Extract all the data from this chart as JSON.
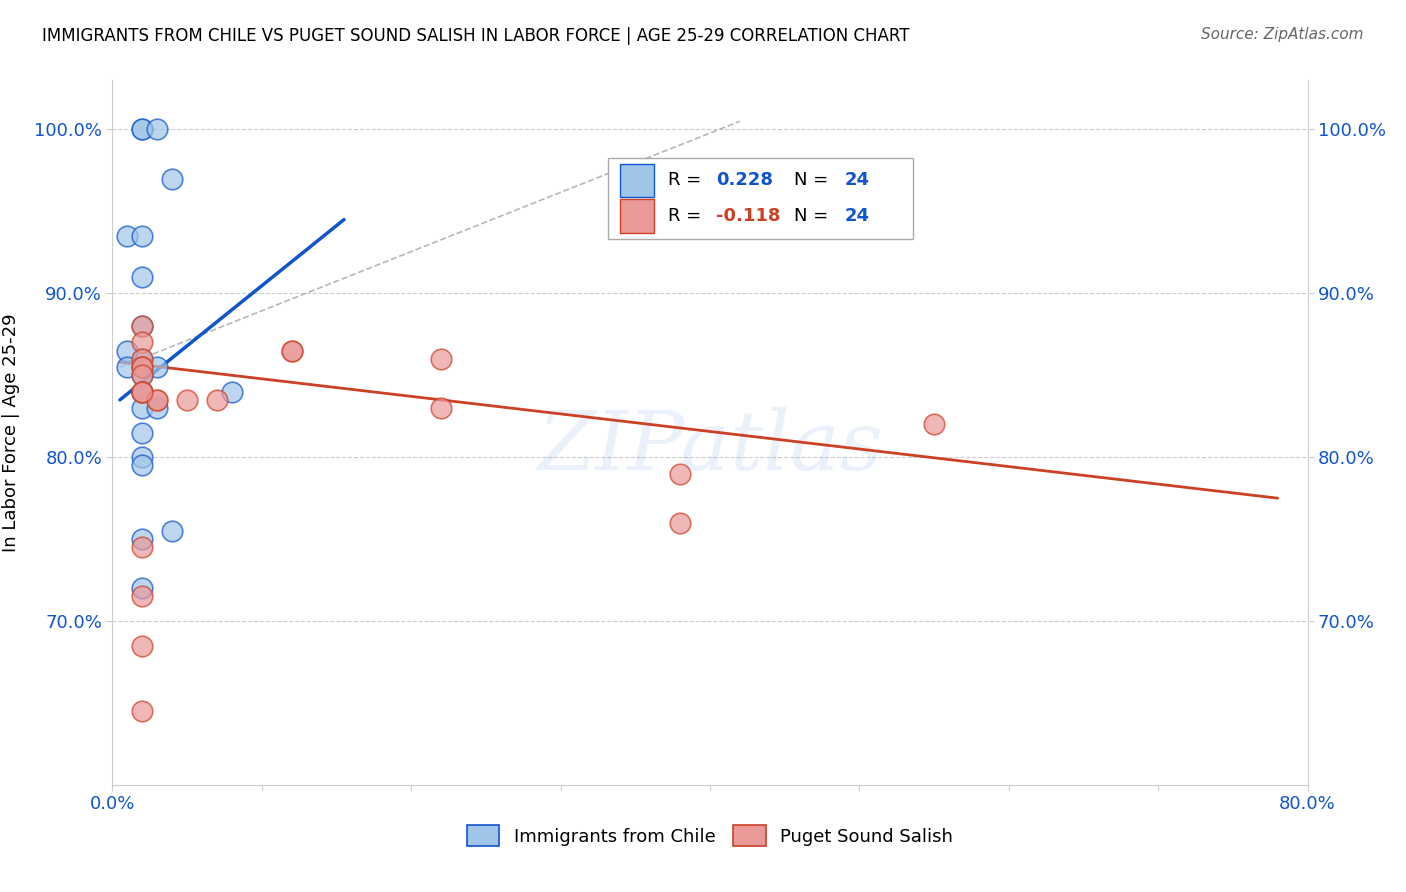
{
  "title": "IMMIGRANTS FROM CHILE VS PUGET SOUND SALISH IN LABOR FORCE | AGE 25-29 CORRELATION CHART",
  "source": "Source: ZipAtlas.com",
  "ylabel": "In Labor Force | Age 25-29",
  "xlim": [
    0.0,
    0.8
  ],
  "ylim": [
    0.6,
    1.03
  ],
  "yticks": [
    0.7,
    0.8,
    0.9,
    1.0
  ],
  "ytick_labels": [
    "70.0%",
    "80.0%",
    "90.0%",
    "100.0%"
  ],
  "xticks": [
    0.0,
    0.1,
    0.2,
    0.3,
    0.4,
    0.5,
    0.6,
    0.7,
    0.8
  ],
  "xtick_labels": [
    "0.0%",
    "",
    "",
    "",
    "",
    "",
    "",
    "",
    "80.0%"
  ],
  "blue_scatter_x": [
    0.02,
    0.02,
    0.03,
    0.01,
    0.02,
    0.02,
    0.02,
    0.02,
    0.01,
    0.02,
    0.03,
    0.01,
    0.02,
    0.02,
    0.08,
    0.02,
    0.03,
    0.04,
    0.02,
    0.02,
    0.02,
    0.02,
    0.02,
    0.04
  ],
  "blue_scatter_y": [
    1.0,
    1.0,
    1.0,
    0.935,
    0.935,
    0.91,
    0.88,
    0.86,
    0.865,
    0.855,
    0.855,
    0.855,
    0.85,
    0.84,
    0.84,
    0.83,
    0.83,
    0.755,
    0.815,
    0.8,
    0.795,
    0.75,
    0.72,
    0.97
  ],
  "pink_scatter_x": [
    0.02,
    0.02,
    0.02,
    0.02,
    0.02,
    0.02,
    0.02,
    0.02,
    0.03,
    0.03,
    0.05,
    0.07,
    0.12,
    0.12,
    0.22,
    0.22,
    0.38,
    0.38,
    0.55,
    0.02,
    0.02,
    0.02,
    0.02,
    0.02
  ],
  "pink_scatter_y": [
    0.88,
    0.87,
    0.86,
    0.855,
    0.855,
    0.85,
    0.84,
    0.84,
    0.835,
    0.835,
    0.835,
    0.835,
    0.865,
    0.865,
    0.86,
    0.83,
    0.79,
    0.76,
    0.82,
    0.745,
    0.715,
    0.685,
    0.645,
    0.84
  ],
  "blue_line_x": [
    0.005,
    0.155
  ],
  "blue_line_y": [
    0.835,
    0.945
  ],
  "pink_line_x": [
    0.005,
    0.78
  ],
  "pink_line_y": [
    0.858,
    0.775
  ],
  "diagonal_line_x": [
    0.005,
    0.42
  ],
  "diagonal_line_y": [
    0.855,
    1.005
  ],
  "blue_color": "#9fc5e8",
  "pink_color": "#ea9999",
  "blue_line_color": "#1155cc",
  "pink_line_color": "#cc4125",
  "diagonal_line_color": "#b7b7b7",
  "watermark": "ZIPatlas",
  "legend_R_blue": "0.228",
  "legend_N_blue": "24",
  "legend_R_pink": "-0.118",
  "legend_N_pink": "24",
  "legend_text_blue": "#1155cc",
  "legend_text_pink": "#cc4125",
  "legend_N_color": "#1155cc",
  "legend_label1": "Immigrants from Chile",
  "legend_label2": "Puget Sound Salish",
  "background_color": "#ffffff",
  "grid_color": "#cccccc"
}
